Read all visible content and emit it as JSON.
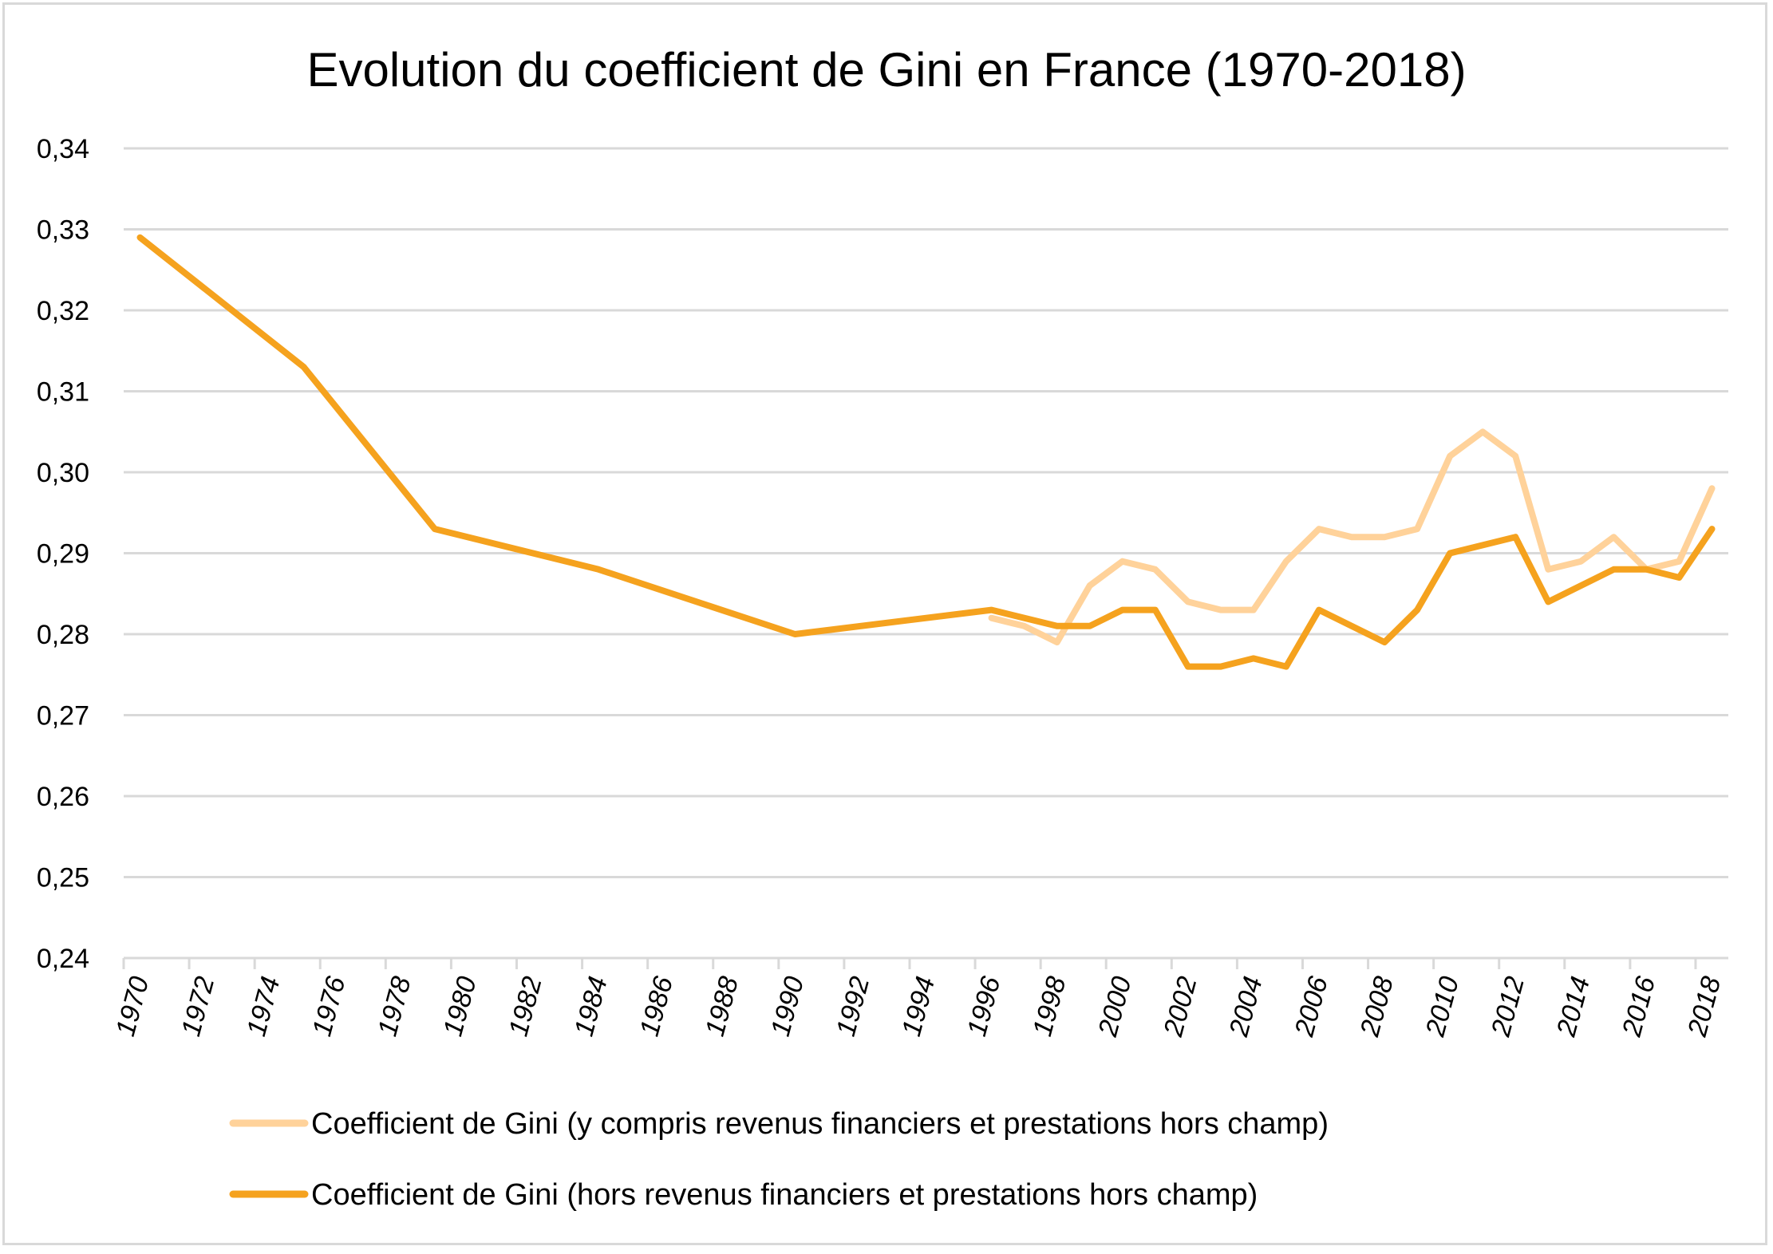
{
  "chart_data": {
    "type": "line",
    "title": "Evolution du coefficient de Gini en France (1970-2018)",
    "xlabel": "",
    "ylabel": "",
    "x_range": [
      1970,
      2018
    ],
    "ylim": [
      0.24,
      0.34
    ],
    "y_ticks": [
      "0,24",
      "0,25",
      "0,26",
      "0,27",
      "0,28",
      "0,29",
      "0,30",
      "0,31",
      "0,32",
      "0,33",
      "0,34"
    ],
    "x_tick_labels": [
      "1970",
      "1972",
      "1974",
      "1976",
      "1978",
      "1980",
      "1982",
      "1984",
      "1986",
      "1988",
      "1990",
      "1992",
      "1994",
      "1996",
      "1998",
      "2000",
      "2002",
      "2004",
      "2006",
      "2008",
      "2010",
      "2012",
      "2014",
      "2016",
      "2018"
    ],
    "grid": "horizontal",
    "legend_position": "bottom",
    "series": [
      {
        "name": "Coefficient de Gini (y compris revenus financiers et prestations hors champ)",
        "color": "#FFD29A",
        "points": [
          [
            1996,
            0.282
          ],
          [
            1997,
            0.281
          ],
          [
            1998,
            0.279
          ],
          [
            1999,
            0.286
          ],
          [
            2000,
            0.289
          ],
          [
            2001,
            0.288
          ],
          [
            2002,
            0.284
          ],
          [
            2003,
            0.283
          ],
          [
            2004,
            0.283
          ],
          [
            2005,
            0.289
          ],
          [
            2006,
            0.293
          ],
          [
            2007,
            0.292
          ],
          [
            2008,
            0.292
          ],
          [
            2009,
            0.293
          ],
          [
            2010,
            0.302
          ],
          [
            2011,
            0.305
          ],
          [
            2012,
            0.302
          ],
          [
            2013,
            0.288
          ],
          [
            2014,
            0.289
          ],
          [
            2015,
            0.292
          ],
          [
            2016,
            0.288
          ],
          [
            2017,
            0.289
          ],
          [
            2018,
            0.298
          ]
        ]
      },
      {
        "name": "Coefficient de Gini (hors revenus financiers et prestations hors champ)",
        "color": "#F5A21E",
        "points": [
          [
            1970,
            0.329
          ],
          [
            1975,
            0.313
          ],
          [
            1979,
            0.293
          ],
          [
            1984,
            0.288
          ],
          [
            1990,
            0.28
          ],
          [
            1996,
            0.283
          ],
          [
            1998,
            0.281
          ],
          [
            1999,
            0.281
          ],
          [
            2000,
            0.283
          ],
          [
            2001,
            0.283
          ],
          [
            2002,
            0.276
          ],
          [
            2003,
            0.276
          ],
          [
            2004,
            0.277
          ],
          [
            2005,
            0.276
          ],
          [
            2006,
            0.283
          ],
          [
            2008,
            0.279
          ],
          [
            2009,
            0.283
          ],
          [
            2010,
            0.29
          ],
          [
            2012,
            0.292
          ],
          [
            2013,
            0.284
          ],
          [
            2015,
            0.288
          ],
          [
            2016,
            0.288
          ],
          [
            2017,
            0.287
          ],
          [
            2018,
            0.293
          ]
        ]
      }
    ]
  }
}
